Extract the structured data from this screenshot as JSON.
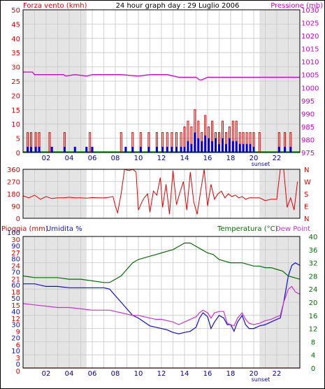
{
  "header": {
    "left": "Forza vento (kmh)",
    "center": "24 hour graph day : 29 Luglio 2006",
    "right": "Pressione (mb)"
  },
  "colors": {
    "wind": "#e00000",
    "gust": "#0000e0",
    "calm": "#00a000",
    "pressure": "#cc00cc",
    "direction": "#e00000",
    "temperature": "#007000",
    "humidity": "#1010cc",
    "dewpoint": "#cc33cc",
    "rain": "#e00000",
    "grid": "#c8c8c8",
    "axis": "#000000",
    "daylight": "#ffffff",
    "night": "#e4e4e4"
  },
  "x_ticks": [
    "02",
    "04",
    "06",
    "08",
    "10",
    "12",
    "14",
    "16",
    "18",
    "20",
    "22"
  ],
  "sunset_label": "sunset",
  "chart_data": [
    {
      "type": "bar",
      "name": "wind",
      "title": "Forza vento (kmh)",
      "ylabel_right": "Pressione (mb)",
      "xlim": [
        0,
        24
      ],
      "ylim": [
        0,
        50
      ],
      "y_ticks": [
        0,
        5,
        10,
        15,
        20,
        25,
        30,
        35,
        40,
        45,
        50
      ],
      "y2lim": [
        975,
        1030
      ],
      "y2_ticks": [
        975,
        980,
        985,
        990,
        995,
        1000,
        1005,
        1010,
        1015,
        1020,
        1025,
        1030
      ],
      "pressure_series": {
        "x": [
          0,
          0.8,
          1.0,
          2.5,
          3.5,
          3.7,
          4.5,
          5.5,
          6.0,
          7.5,
          8.5,
          10.0,
          11.0,
          12.5,
          13.5,
          14.0,
          15.0,
          15.3,
          15.5,
          16.0,
          18.0,
          19.0,
          20.0,
          21.0,
          22.0,
          23.0,
          24.0
        ],
        "y": [
          1006,
          1006,
          1005,
          1005,
          1005,
          1004.5,
          1005,
          1004.5,
          1005,
          1005,
          1005,
          1004.5,
          1005,
          1005,
          1004,
          1004,
          1004,
          1003,
          1003,
          1004,
          1004,
          1004,
          1004,
          1004,
          1004,
          1004,
          1004
        ]
      },
      "wind_series": {
        "x": [
          0.4,
          0.7,
          1.1,
          1.4,
          2.5,
          3.6,
          4.5,
          5.5,
          6.0,
          8.9,
          9.5,
          10.2,
          10.9,
          11.6,
          12.1,
          12.5,
          12.9,
          13.3,
          13.7,
          14.0,
          14.3,
          14.6,
          14.9,
          15.2,
          15.5,
          15.8,
          16.1,
          16.4,
          16.7,
          17.0,
          17.3,
          17.6,
          17.9,
          18.2,
          18.5,
          18.8,
          19.1,
          19.4,
          19.7,
          20.0,
          22.2,
          22.7,
          23.2
        ],
        "y": [
          2,
          2,
          2,
          2,
          2,
          2,
          2,
          2,
          2,
          2,
          2,
          2,
          2,
          2,
          2,
          2,
          2,
          2,
          2,
          2,
          4,
          3,
          7,
          5,
          4,
          6,
          5,
          4,
          5,
          3,
          5,
          3,
          5,
          4,
          4,
          3,
          3,
          3,
          3,
          2,
          2,
          2,
          2
        ]
      },
      "gust_series": {
        "x": [
          0.4,
          0.7,
          1.1,
          1.4,
          2.3,
          3.6,
          5.8,
          8.5,
          9.5,
          10.2,
          10.9,
          11.6,
          12.1,
          12.5,
          12.9,
          13.3,
          13.7,
          14.0,
          14.3,
          14.6,
          14.9,
          15.2,
          15.5,
          15.8,
          16.1,
          16.4,
          16.7,
          17.0,
          17.3,
          17.6,
          17.9,
          18.2,
          18.5,
          18.8,
          19.1,
          19.4,
          19.7,
          20.0,
          20.5,
          22.2,
          22.7,
          23.2
        ],
        "y": [
          7,
          7,
          7,
          7,
          7,
          7,
          7,
          7,
          7,
          7,
          7,
          7,
          7,
          7,
          7,
          7,
          7,
          9,
          11,
          9,
          15,
          11,
          7,
          13,
          9,
          11,
          7,
          7,
          11,
          7,
          9,
          11,
          11,
          7,
          7,
          7,
          7,
          7,
          7,
          7,
          7,
          7
        ]
      }
    },
    {
      "type": "line",
      "name": "direction",
      "xlim": [
        0,
        24
      ],
      "ylim": [
        0,
        360
      ],
      "y_ticks": [
        0,
        90,
        180,
        270,
        360
      ],
      "y_right_labels": [
        "N",
        "E",
        "S",
        "W",
        "N"
      ],
      "series": {
        "x": [
          0,
          0.5,
          1.0,
          1.5,
          2.0,
          2.5,
          3.0,
          3.5,
          4.0,
          4.5,
          5.0,
          5.5,
          6.0,
          6.5,
          7.0,
          7.5,
          7.8,
          8.0,
          8.2,
          8.5,
          8.8,
          9.0,
          9.2,
          9.5,
          9.8,
          10.0,
          10.3,
          10.5,
          10.8,
          11.0,
          11.3,
          11.6,
          11.9,
          12.1,
          12.4,
          12.7,
          13.0,
          13.3,
          13.6,
          13.9,
          14.2,
          14.5,
          14.8,
          15.1,
          15.4,
          15.7,
          16.0,
          16.3,
          16.6,
          16.9,
          17.2,
          17.5,
          17.8,
          18.1,
          18.4,
          18.7,
          19.0,
          19.3,
          19.6,
          19.9,
          20.2,
          20.5,
          21.0,
          21.5,
          22.0,
          22.3,
          22.6,
          22.9,
          23.2,
          23.5,
          23.8
        ],
        "y": [
          165,
          150,
          170,
          140,
          160,
          145,
          150,
          150,
          155,
          150,
          150,
          148,
          152,
          150,
          150,
          155,
          160,
          90,
          40,
          180,
          360,
          355,
          350,
          360,
          340,
          60,
          120,
          150,
          180,
          45,
          200,
          170,
          300,
          80,
          250,
          30,
          350,
          100,
          190,
          270,
          60,
          340,
          120,
          30,
          200,
          360,
          90,
          250,
          140,
          180,
          200,
          150,
          180,
          160,
          170,
          150,
          160,
          140,
          150,
          150,
          150,
          150,
          130,
          140,
          140,
          360,
          360,
          80,
          150,
          60,
          270
        ]
      }
    },
    {
      "type": "line",
      "name": "weather",
      "title_left": "Pioggia (mm)",
      "title_left2": "Umidita %",
      "title_right": "Temperatura (°C)",
      "title_right2": "Dew Point",
      "xlim": [
        0,
        24
      ],
      "ylim": [
        0,
        100
      ],
      "y_ticks_left": [
        0,
        3,
        6,
        9,
        12,
        15,
        18,
        21,
        24,
        27,
        30
      ],
      "y_ticks_humidity": [
        0,
        10,
        20,
        30,
        40,
        50,
        60,
        70,
        80,
        90,
        100
      ],
      "y2lim": [
        0,
        40
      ],
      "y2_ticks": [
        0,
        4,
        8,
        12,
        16,
        20,
        24,
        28,
        32,
        36,
        40
      ],
      "temperature": {
        "x": [
          0,
          1,
          2,
          3,
          4,
          5,
          6,
          7,
          7.5,
          8,
          8.5,
          9,
          9.5,
          10,
          10.5,
          11,
          11.5,
          12,
          12.5,
          13,
          13.5,
          14,
          14.5,
          15,
          15.5,
          16,
          16.5,
          17,
          17.5,
          18,
          18.5,
          19,
          19.5,
          20,
          20.5,
          21,
          21.5,
          22,
          22.5,
          23,
          23.5,
          24
        ],
        "y": [
          28,
          27.5,
          27.5,
          27.5,
          27,
          27,
          26.5,
          26,
          26,
          27,
          28,
          30,
          32,
          33,
          33.5,
          34,
          34.5,
          35,
          35.5,
          36,
          37,
          38,
          38,
          37,
          36,
          35,
          34.5,
          33,
          32.5,
          32,
          32,
          32,
          31.5,
          31,
          31,
          30.5,
          30.5,
          30,
          29.5,
          28,
          27.5,
          27
        ]
      },
      "humidity": {
        "x": [
          0,
          1,
          2,
          3,
          4,
          5,
          6,
          7,
          7.5,
          8,
          8.5,
          9,
          9.5,
          10,
          10.5,
          11,
          11.5,
          12,
          12.5,
          13,
          13.5,
          14,
          14.5,
          15,
          15.3,
          15.6,
          16,
          16.3,
          16.6,
          17,
          17.4,
          17.7,
          18,
          18.3,
          18.6,
          19,
          19.3,
          19.6,
          20,
          20.5,
          21,
          21.5,
          22,
          22.3,
          22.6,
          23,
          23.3,
          23.6,
          24
        ],
        "y": [
          64,
          64,
          62,
          62,
          61,
          61,
          61,
          61,
          60,
          55,
          50,
          45,
          40,
          38,
          35,
          32,
          31,
          30,
          29,
          27,
          26,
          27,
          28,
          31,
          38,
          42,
          39,
          30,
          35,
          40,
          38,
          33,
          33,
          28,
          35,
          40,
          33,
          30,
          30,
          32,
          33,
          35,
          37,
          38,
          50,
          70,
          78,
          80,
          78
        ]
      },
      "dewpoint": {
        "x": [
          0,
          1,
          2,
          3,
          4,
          5,
          6,
          7,
          7.5,
          8,
          8.5,
          9,
          9.5,
          10,
          10.5,
          11,
          11.5,
          12,
          12.5,
          13,
          13.5,
          14,
          14.5,
          15,
          15.3,
          15.6,
          16,
          16.3,
          16.6,
          17,
          17.4,
          17.7,
          18,
          18.3,
          18.6,
          19,
          19.3,
          19.6,
          20,
          20.5,
          21,
          21.5,
          22,
          22.3,
          22.6,
          23,
          23.3,
          23.6,
          24
        ],
        "y": [
          49,
          48,
          47,
          46,
          46,
          45,
          44,
          44,
          44,
          43,
          42,
          41,
          40,
          40,
          39,
          38,
          37,
          37,
          36,
          35,
          33,
          35,
          37,
          39,
          42,
          44,
          42,
          38,
          42,
          43,
          43,
          34,
          33,
          32,
          38,
          42,
          37,
          34,
          33,
          34,
          36,
          37,
          39,
          40,
          50,
          60,
          62,
          58,
          56
        ]
      },
      "rain": {
        "x": [
          0,
          24
        ],
        "y": [
          0,
          0
        ]
      }
    }
  ]
}
